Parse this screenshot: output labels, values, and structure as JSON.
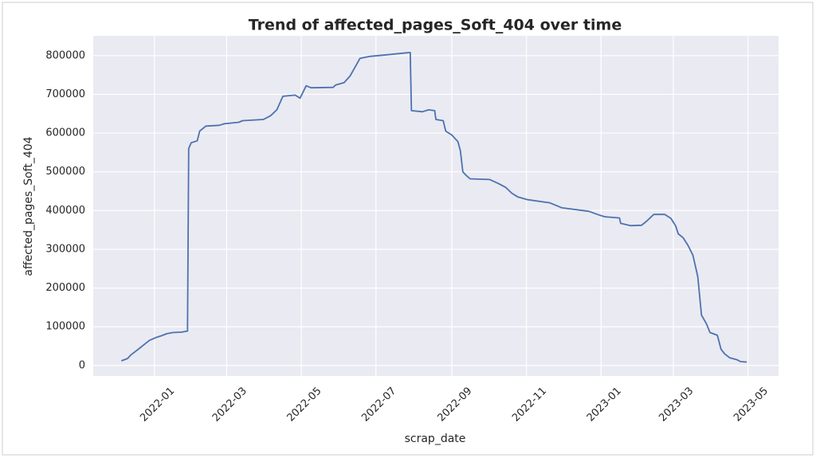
{
  "chart_data": {
    "type": "line",
    "title": "Trend of affected_pages_Soft_404 over time",
    "x_label": "scrap_date",
    "y_label": "affected_pages_Soft_404",
    "x": [
      -27,
      -22,
      -19,
      -16,
      -12,
      -8,
      -4,
      1,
      6,
      10,
      15,
      22,
      27,
      28,
      30,
      35,
      37,
      42,
      53,
      57,
      69,
      72,
      89,
      95,
      100,
      105,
      115,
      119,
      124,
      128,
      146,
      148,
      155,
      160,
      168,
      176,
      193,
      209,
      210,
      219,
      224,
      229,
      230,
      236,
      238,
      243,
      248,
      250,
      252,
      255,
      258,
      274,
      281,
      287,
      292,
      297,
      305,
      323,
      333,
      355,
      362,
      368,
      380,
      381,
      389,
      398,
      402,
      408,
      417,
      422,
      426,
      428,
      432,
      436,
      440,
      444,
      447,
      451,
      454,
      460,
      463,
      466,
      470,
      476,
      479,
      484
    ],
    "series": [
      {
        "name": "affected_pages_Soft_404",
        "color": "#4c72b0",
        "values": [
          12000,
          18000,
          28000,
          35000,
          45000,
          55000,
          65000,
          72000,
          77000,
          82000,
          85000,
          86000,
          89000,
          560000,
          575000,
          580000,
          605000,
          618000,
          620000,
          624000,
          628000,
          632000,
          635000,
          645000,
          660000,
          695000,
          698000,
          690000,
          722000,
          717000,
          718000,
          724000,
          730000,
          748000,
          793000,
          798000,
          803000,
          808000,
          658000,
          655000,
          660000,
          658000,
          635000,
          632000,
          605000,
          595000,
          578000,
          555000,
          500000,
          490000,
          482000,
          480000,
          470000,
          460000,
          445000,
          435000,
          428000,
          420000,
          407000,
          398000,
          390000,
          384000,
          381000,
          367000,
          361000,
          362000,
          372000,
          390000,
          390000,
          380000,
          360000,
          340000,
          330000,
          310000,
          285000,
          230000,
          130000,
          108000,
          85000,
          78000,
          42000,
          30000,
          20000,
          15000,
          10000,
          9000
        ]
      }
    ],
    "xlim": [
      -50,
      510
    ],
    "xticks": [
      {
        "value": 0,
        "label": "2022-01"
      },
      {
        "value": 59,
        "label": "2022-03"
      },
      {
        "value": 120,
        "label": "2022-05"
      },
      {
        "value": 181,
        "label": "2022-07"
      },
      {
        "value": 243,
        "label": "2022-09"
      },
      {
        "value": 304,
        "label": "2022-11"
      },
      {
        "value": 365,
        "label": "2023-01"
      },
      {
        "value": 424,
        "label": "2023-03"
      },
      {
        "value": 485,
        "label": "2023-05"
      }
    ],
    "ylim": [
      -27000,
      851000
    ],
    "yticks": [
      0,
      100000,
      200000,
      300000,
      400000,
      500000,
      600000,
      700000,
      800000
    ],
    "grid": true
  }
}
